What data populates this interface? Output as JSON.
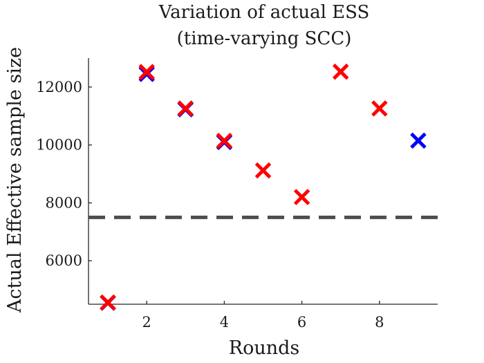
{
  "chart_data": {
    "type": "scatter",
    "title_lines": [
      "Variation of actual ESS",
      "(time-varying SCC)"
    ],
    "xlabel": "Rounds",
    "ylabel": "Actual Effective sample size",
    "xlim": [
      0.5,
      9.5
    ],
    "ylim": [
      4500,
      13000
    ],
    "xticks": [
      2,
      4,
      6,
      8
    ],
    "yticks": [
      6000,
      8000,
      10000,
      12000
    ],
    "grid": false,
    "legend": "none",
    "threshold": {
      "y": 7500,
      "style": "dashed",
      "color": "#4d4d4d"
    },
    "series": [
      {
        "color": "#0000ff",
        "marker": "x",
        "x": [
          1,
          2,
          3,
          4,
          9
        ],
        "y": [
          4550,
          12450,
          11230,
          10100,
          10150
        ]
      },
      {
        "color": "#ff0000",
        "marker": "x",
        "x": [
          1,
          2,
          3,
          4,
          5,
          6,
          7,
          8
        ],
        "y": [
          4560,
          12520,
          11260,
          10140,
          9120,
          8200,
          12530,
          11260
        ]
      }
    ]
  }
}
